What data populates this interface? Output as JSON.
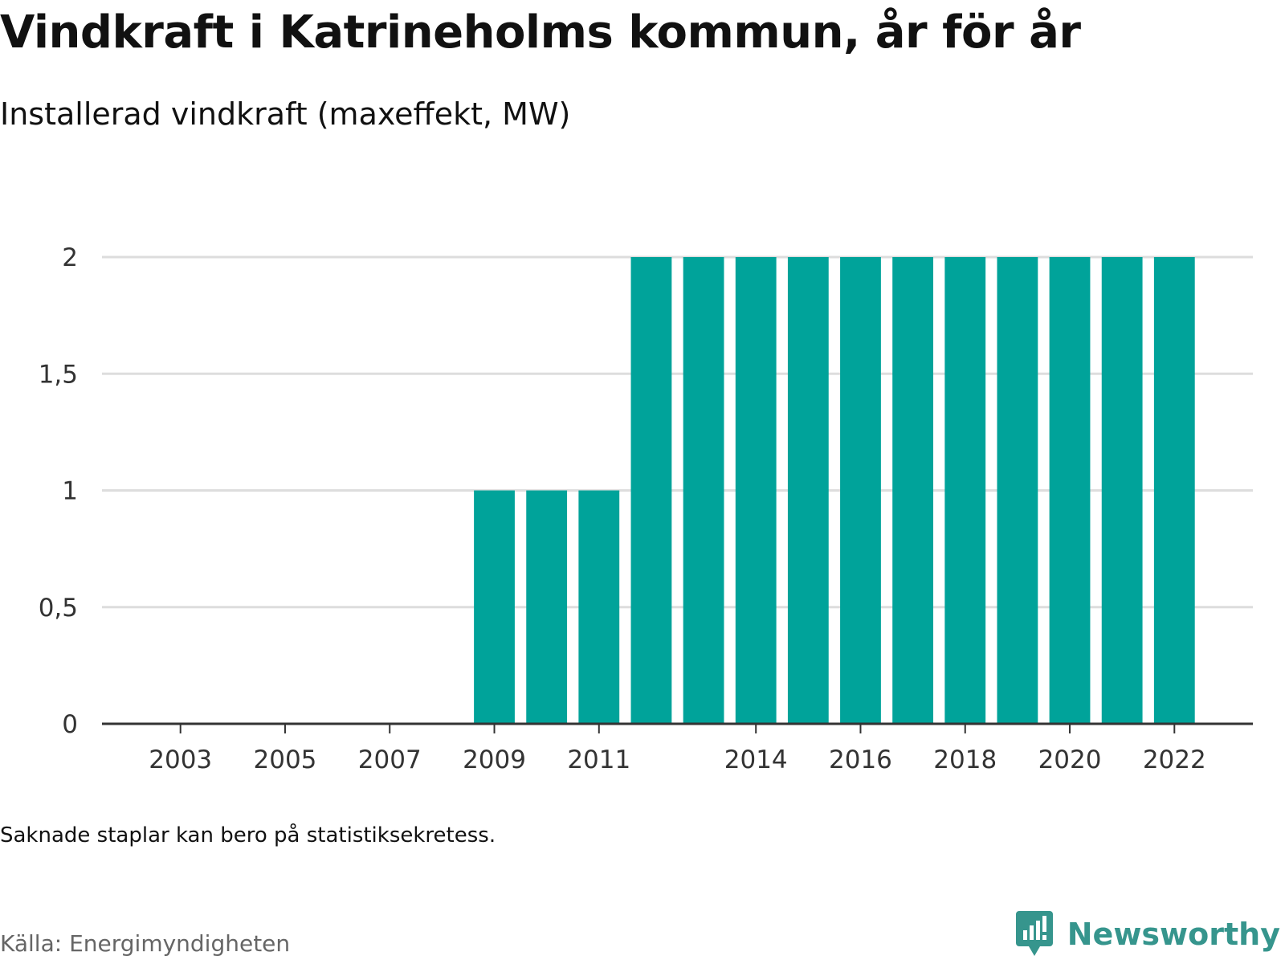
{
  "title": "Vindkraft i Katrineholms kommun, år för år",
  "subtitle": "Installerad vindkraft (maxeffekt, MW)",
  "note": "Saknade staplar kan bero på statistiksekretess.",
  "source": "Källa: Energimyndigheten",
  "brand": {
    "name": "Newsworthy",
    "icon": "newsworthy-logo-icon",
    "color": "#36958d"
  },
  "colors": {
    "bar": "#00a39a",
    "grid": "#dddddd",
    "axis": "#333333"
  },
  "chart_data": {
    "type": "bar",
    "x": [
      2002,
      2003,
      2004,
      2005,
      2006,
      2007,
      2008,
      2009,
      2010,
      2011,
      2012,
      2013,
      2014,
      2015,
      2016,
      2017,
      2018,
      2019,
      2020,
      2021,
      2022,
      2023
    ],
    "values": [
      null,
      null,
      null,
      null,
      null,
      null,
      null,
      1,
      1,
      1,
      2,
      2,
      2,
      2,
      2,
      2,
      2,
      2,
      2,
      2,
      2,
      null
    ],
    "x_ticks": [
      "2003",
      "2005",
      "2007",
      "2009",
      "2011",
      "2014",
      "2016",
      "2018",
      "2020",
      "2022"
    ],
    "x_tick_years": [
      2003,
      2005,
      2007,
      2009,
      2011,
      2014,
      2016,
      2018,
      2020,
      2022
    ],
    "y_ticks": [
      "0",
      "0,5",
      "1",
      "1,5",
      "2"
    ],
    "y_tick_values": [
      0,
      0.5,
      1,
      1.5,
      2
    ],
    "ylim": [
      0,
      2
    ],
    "grid": true,
    "legend": "none"
  }
}
